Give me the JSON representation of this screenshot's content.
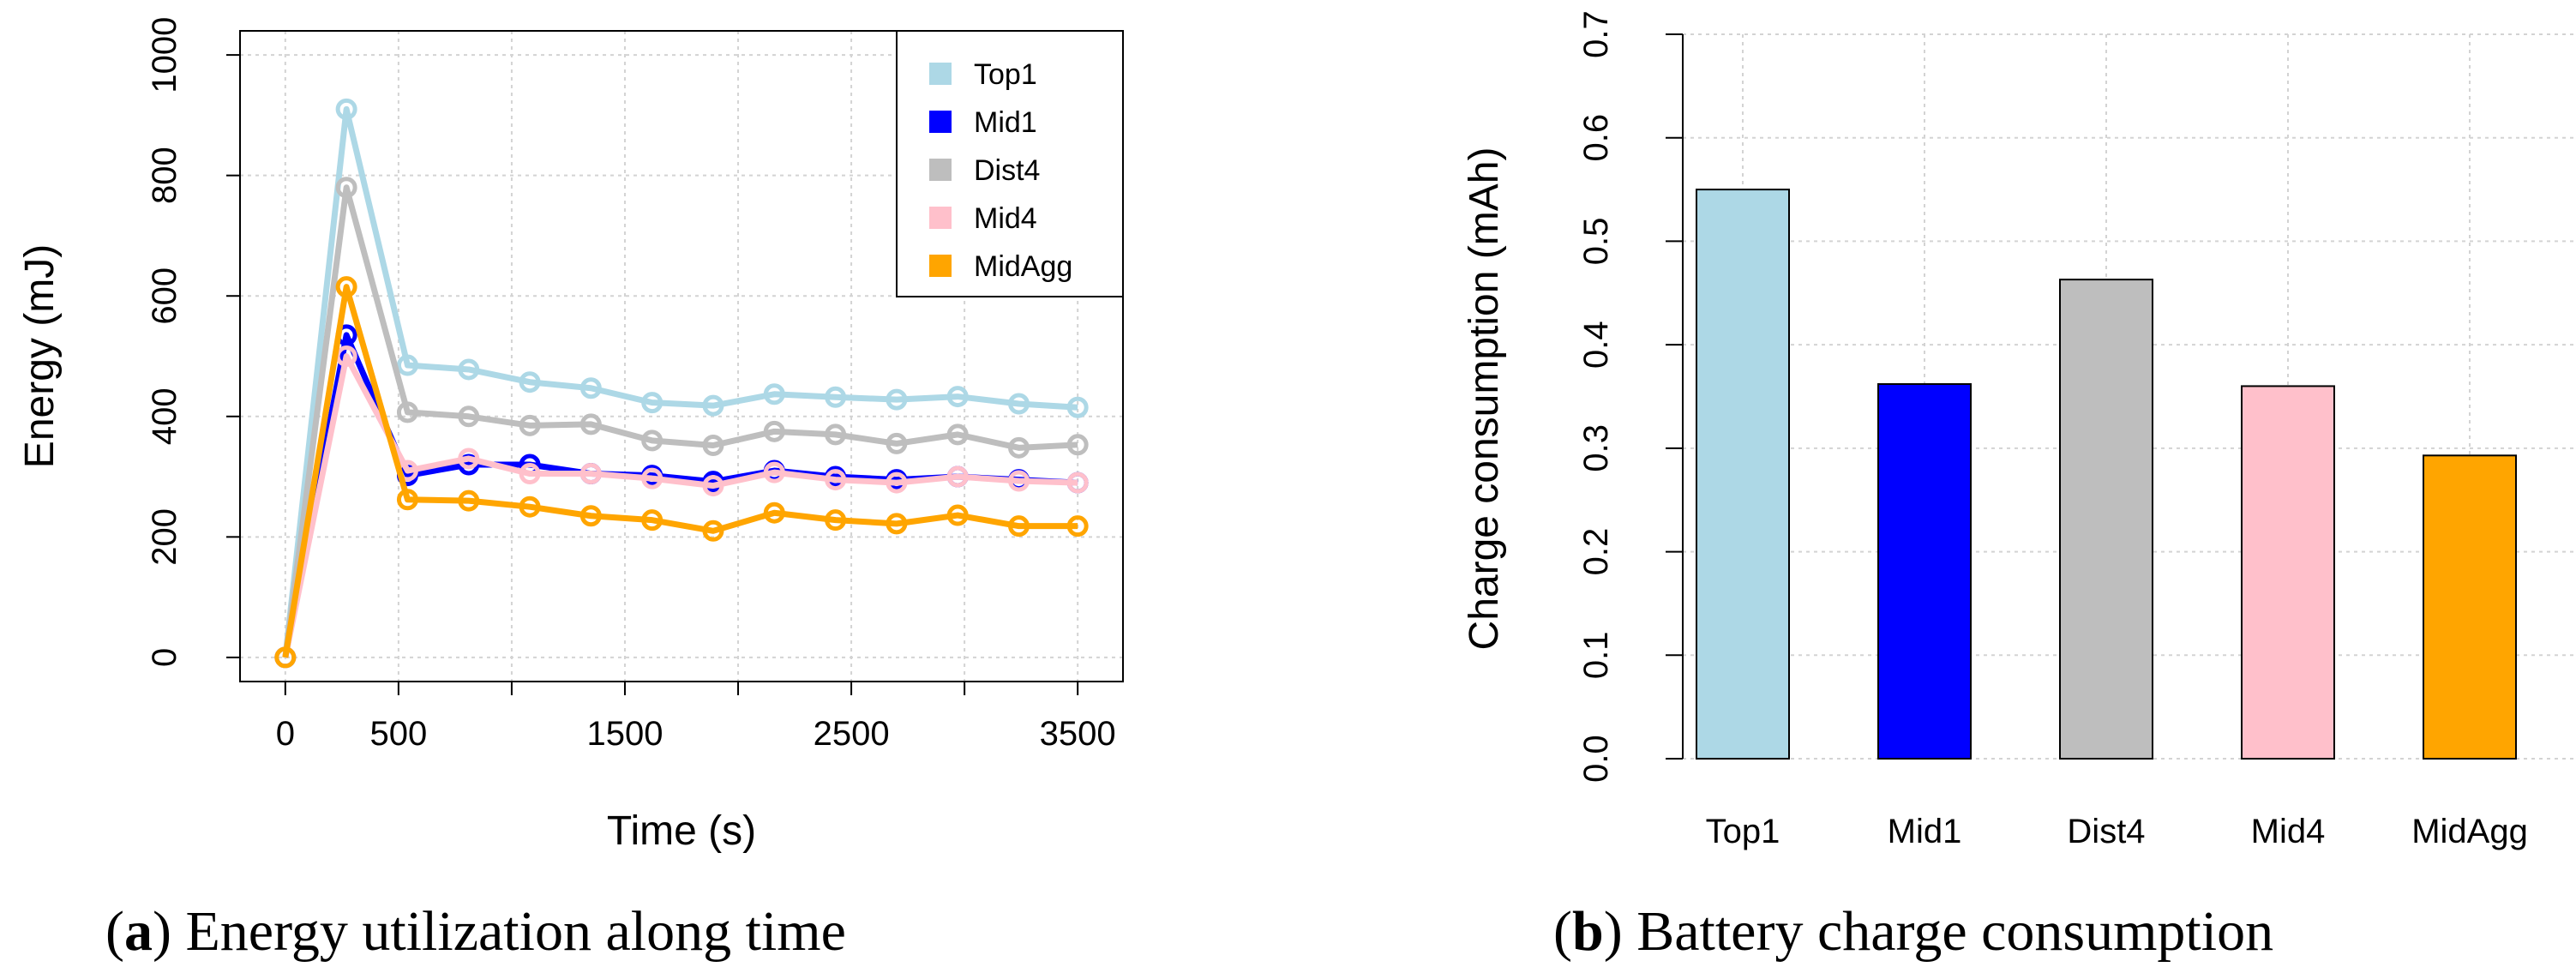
{
  "captions": {
    "a": {
      "letter": "a",
      "text": " Energy utilization along time"
    },
    "b": {
      "letter": "b",
      "text": " Battery charge consumption"
    }
  },
  "chart_data": [
    {
      "type": "line",
      "title": "",
      "xlabel": "Time (s)",
      "ylabel": "Energy (mJ)",
      "xlim": [
        -200,
        3700
      ],
      "ylim": [
        -40,
        1040
      ],
      "x_ticks": [
        0,
        500,
        1500,
        2500,
        3500
      ],
      "x_minor_ticks": [
        1000,
        2000,
        3000
      ],
      "y_ticks": [
        0,
        200,
        400,
        600,
        800,
        1000
      ],
      "grid": true,
      "legend_position": "top-right",
      "x": [
        0,
        270,
        540,
        810,
        1080,
        1350,
        1620,
        1890,
        2160,
        2430,
        2700,
        2970,
        3240,
        3500
      ],
      "series": [
        {
          "name": "Top1",
          "color": "#add8e6",
          "values": [
            0,
            910,
            485,
            478,
            457,
            447,
            423,
            418,
            437,
            432,
            428,
            433,
            421,
            415
          ]
        },
        {
          "name": "Mid1",
          "color": "#0000ff",
          "values": [
            0,
            535,
            302,
            320,
            320,
            305,
            302,
            292,
            310,
            300,
            295,
            300,
            295,
            290
          ]
        },
        {
          "name": "Dist4",
          "color": "#bebebe",
          "values": [
            0,
            780,
            407,
            400,
            385,
            387,
            360,
            352,
            375,
            370,
            355,
            370,
            348,
            353
          ]
        },
        {
          "name": "Mid4",
          "color": "#ffc0cb",
          "values": [
            0,
            500,
            310,
            330,
            305,
            305,
            297,
            285,
            307,
            295,
            290,
            300,
            293,
            290
          ]
        },
        {
          "name": "MidAgg",
          "color": "#ffa500",
          "values": [
            0,
            615,
            262,
            260,
            250,
            235,
            228,
            210,
            240,
            228,
            222,
            236,
            218,
            218
          ]
        }
      ]
    },
    {
      "type": "bar",
      "title": "",
      "xlabel": "",
      "ylabel": "Charge consumption (mAh)",
      "ylim": [
        0,
        0.7
      ],
      "y_ticks": [
        "0.0",
        "0.1",
        "0.2",
        "0.3",
        "0.4",
        "0.5",
        "0.6",
        "0.7"
      ],
      "grid": true,
      "categories": [
        "Top1",
        "Mid1",
        "Dist4",
        "Mid4",
        "MidAgg"
      ],
      "values": [
        0.55,
        0.362,
        0.463,
        0.36,
        0.293
      ],
      "colors": [
        "#add8e6",
        "#0000ff",
        "#bebebe",
        "#ffc0cb",
        "#ffa500"
      ]
    }
  ]
}
